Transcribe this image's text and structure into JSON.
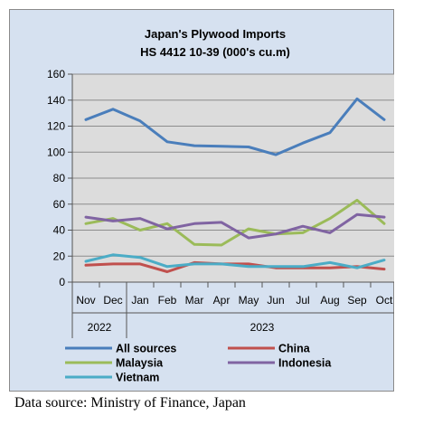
{
  "chart_data": {
    "type": "line",
    "title": "Japan's Plywood Imports",
    "subtitle": "HS 4412 10-39  (000's cu.m)",
    "categories": [
      "Nov",
      "Dec",
      "Jan",
      "Feb",
      "Mar",
      "Apr",
      "May",
      "Jun",
      "Jul",
      "Aug",
      "Sep",
      "Oct"
    ],
    "year_groups": [
      {
        "label": "2022",
        "count": 2
      },
      {
        "label": "2023",
        "count": 10
      }
    ],
    "ylim": [
      0,
      160
    ],
    "yticks": [
      0,
      20,
      40,
      60,
      80,
      100,
      120,
      140,
      160
    ],
    "grid": true,
    "legend_position": "bottom",
    "series": [
      {
        "name": "All sources",
        "color": "#4a7ebb",
        "values": [
          125,
          133,
          124,
          108,
          105,
          104.5,
          104,
          98,
          107,
          115,
          141,
          125
        ]
      },
      {
        "name": "China",
        "color": "#c0504d",
        "values": [
          13,
          14,
          14,
          8,
          15,
          14,
          14,
          11,
          11,
          11,
          12,
          10
        ]
      },
      {
        "name": "Malaysia",
        "color": "#9bbb59",
        "values": [
          45,
          49,
          40,
          45,
          29,
          28.5,
          41,
          37,
          38,
          49,
          63,
          45
        ]
      },
      {
        "name": "Indonesia",
        "color": "#8064a2",
        "values": [
          50,
          47,
          49,
          41,
          45,
          46,
          34,
          37,
          43,
          38,
          52,
          50
        ]
      },
      {
        "name": "Vietnam",
        "color": "#4bacc6",
        "values": [
          16,
          21,
          19,
          12,
          14,
          14,
          12,
          12,
          12,
          15,
          11,
          17
        ]
      }
    ]
  },
  "source_note": "Data source: Ministry of Finance, Japan"
}
